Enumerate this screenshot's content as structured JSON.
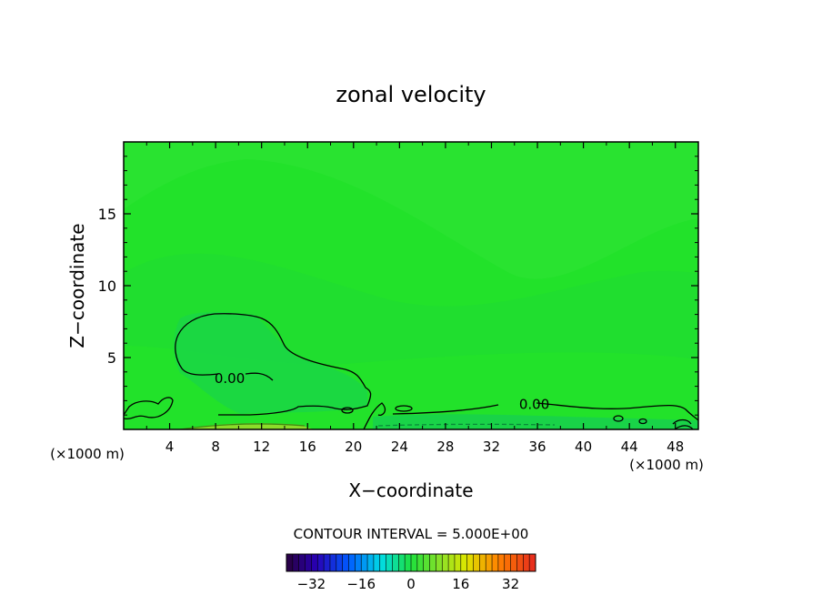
{
  "chart_data": {
    "type": "heatmap",
    "title": "zonal velocity",
    "xlabel": "X−coordinate",
    "ylabel": "Z−coordinate",
    "x_unit_left": "(×1000 m)",
    "x_unit_right": "(×1000 m)",
    "xlim": [
      0,
      50
    ],
    "ylim": [
      0,
      20
    ],
    "xticks": [
      4,
      8,
      12,
      16,
      20,
      24,
      28,
      32,
      36,
      40,
      44,
      48
    ],
    "yticks": [
      5,
      10,
      15
    ],
    "contour_interval_label": "CONTOUR INTERVAL = 5.000E+00",
    "contour_labels": [
      {
        "text": "0.00",
        "x": 7.8,
        "z": 3.6
      },
      {
        "text": "0.00",
        "x": 34.3,
        "z": 1.8
      }
    ],
    "background_color": "#22e22a",
    "colorbar": {
      "range": [
        -40,
        40
      ],
      "ticks": [
        -32,
        -16,
        0,
        16,
        32
      ],
      "tick_labels": [
        "−32",
        "−16",
        "0",
        "16",
        "32"
      ]
    },
    "grid": false
  }
}
